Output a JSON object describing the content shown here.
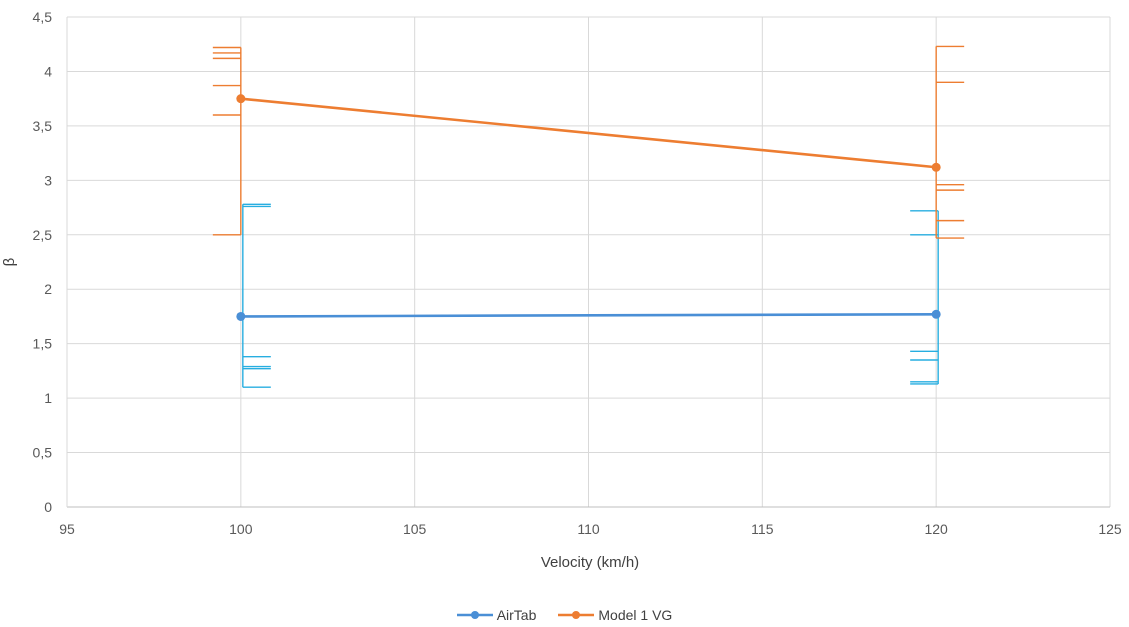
{
  "chart_data": {
    "type": "line",
    "title": "",
    "xlabel": "Velocity (km/h)",
    "ylabel": "β",
    "xlim": [
      95,
      125
    ],
    "ylim": [
      0,
      4.5
    ],
    "x_ticks": [
      95,
      100,
      105,
      110,
      115,
      120,
      125
    ],
    "y_ticks": [
      0,
      0.5,
      1,
      1.5,
      2,
      2.5,
      3,
      3.5,
      4,
      4.5
    ],
    "x_tick_labels": [
      "95",
      "100",
      "105",
      "110",
      "115",
      "120",
      "125"
    ],
    "y_tick_labels": [
      "0",
      "0,5",
      "1",
      "1,5",
      "2",
      "2,5",
      "3",
      "3,5",
      "4",
      "4,5"
    ],
    "grid": true,
    "legend_position": "bottom",
    "series": [
      {
        "name": "AirTab",
        "color": "#4a8fd6",
        "error_color": "#27aee0",
        "x": [
          100,
          120
        ],
        "y": [
          1.75,
          1.77
        ],
        "error_ranges": [
          [
            1.1,
            2.78
          ],
          [
            1.13,
            2.72
          ]
        ],
        "error_ticks": [
          [
            2.78,
            2.76,
            1.38,
            1.29,
            1.27,
            1.1
          ],
          [
            2.72,
            2.5,
            1.43,
            1.35,
            1.15,
            1.13
          ]
        ]
      },
      {
        "name": "Model 1 VG",
        "color": "#ed7d31",
        "error_color": "#ed7d31",
        "x": [
          100,
          120
        ],
        "y": [
          3.75,
          3.12
        ],
        "error_ranges": [
          [
            2.5,
            4.22
          ],
          [
            2.47,
            4.23
          ]
        ],
        "error_ticks": [
          [
            4.22,
            4.17,
            4.12,
            3.87,
            3.6,
            2.5
          ],
          [
            4.23,
            3.9,
            2.96,
            2.91,
            2.63,
            2.47
          ]
        ]
      }
    ]
  }
}
